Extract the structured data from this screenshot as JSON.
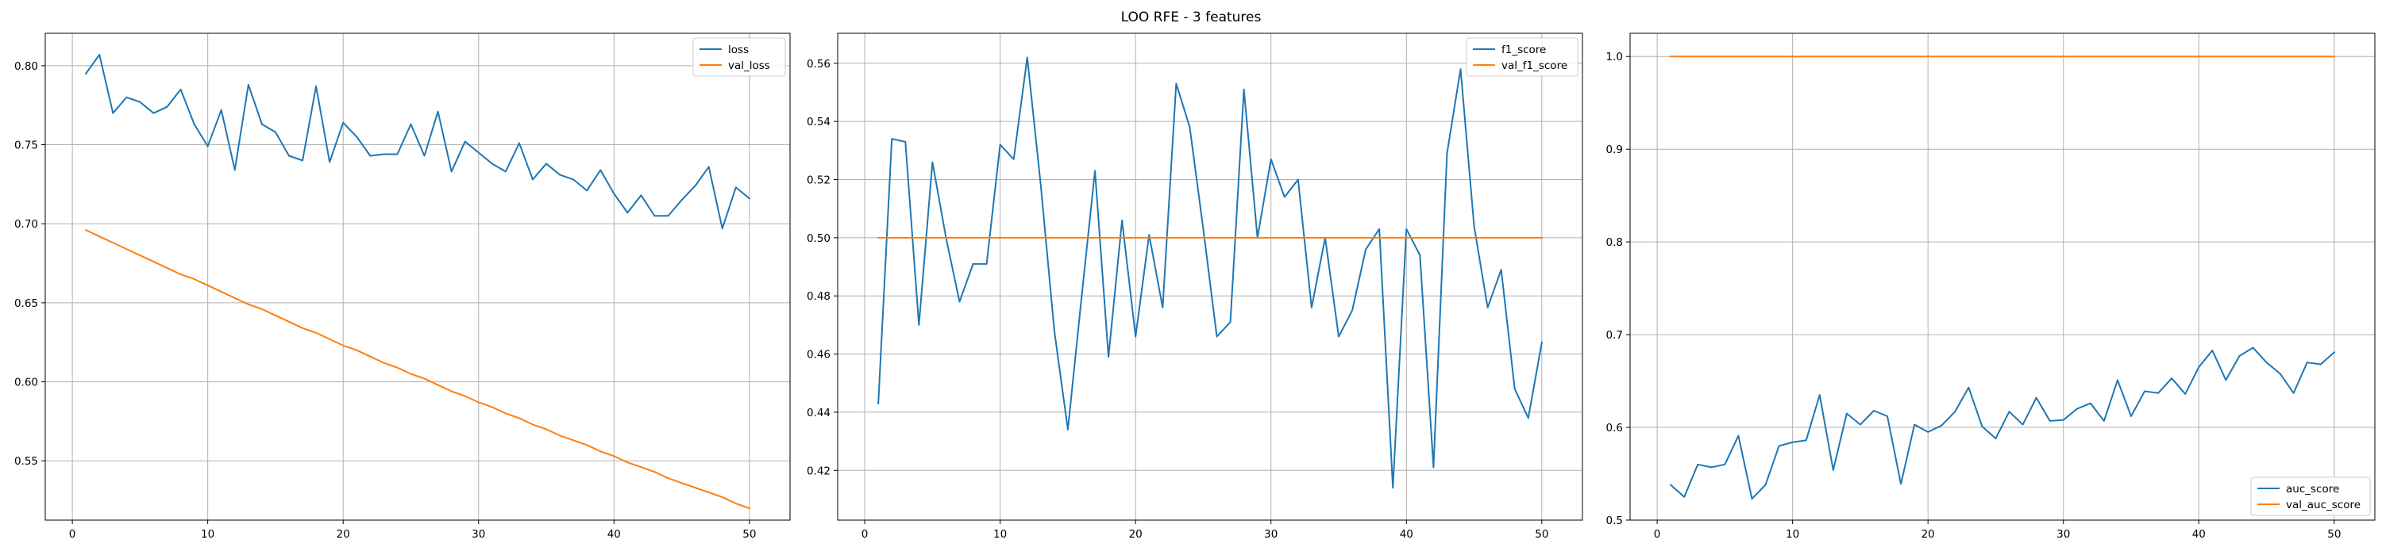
{
  "title": "LOO RFE - 3 features",
  "chart_data": [
    {
      "type": "line",
      "x": [
        1,
        2,
        3,
        4,
        5,
        6,
        7,
        8,
        9,
        10,
        11,
        12,
        13,
        14,
        15,
        16,
        17,
        18,
        19,
        20,
        21,
        22,
        23,
        24,
        25,
        26,
        27,
        28,
        29,
        30,
        31,
        32,
        33,
        34,
        35,
        36,
        37,
        38,
        39,
        40,
        41,
        42,
        43,
        44,
        45,
        46,
        47,
        48,
        49,
        50
      ],
      "xlim": [
        -2.0,
        53.0
      ],
      "xticks": [
        0,
        10,
        20,
        30,
        40,
        50
      ],
      "ylim": [
        0.5125,
        0.8205
      ],
      "yticks": [
        0.55,
        0.6,
        0.65,
        0.7,
        0.75,
        0.8
      ],
      "ytick_labels": [
        "0.55",
        "0.60",
        "0.65",
        "0.70",
        "0.75",
        "0.80"
      ],
      "grid": true,
      "legend_position": "upper-right",
      "series": [
        {
          "name": "loss",
          "color": "#1f77b4",
          "values": [
            0.795,
            0.807,
            0.77,
            0.78,
            0.777,
            0.77,
            0.774,
            0.785,
            0.763,
            0.749,
            0.772,
            0.734,
            0.788,
            0.763,
            0.758,
            0.743,
            0.74,
            0.787,
            0.739,
            0.764,
            0.755,
            0.743,
            0.744,
            0.744,
            0.763,
            0.743,
            0.771,
            0.733,
            0.752,
            0.745,
            0.738,
            0.733,
            0.751,
            0.728,
            0.738,
            0.731,
            0.728,
            0.721,
            0.734,
            0.719,
            0.707,
            0.718,
            0.705,
            0.705,
            0.715,
            0.724,
            0.736,
            0.697,
            0.723,
            0.716
          ]
        },
        {
          "name": "val_loss",
          "color": "#ff7f0e",
          "values": [
            0.696,
            0.692,
            0.688,
            0.684,
            0.68,
            0.676,
            0.672,
            0.668,
            0.665,
            0.661,
            0.657,
            0.653,
            0.649,
            0.646,
            0.642,
            0.638,
            0.634,
            0.631,
            0.627,
            0.623,
            0.62,
            0.616,
            0.612,
            0.609,
            0.605,
            0.602,
            0.598,
            0.594,
            0.591,
            0.587,
            0.584,
            0.58,
            0.577,
            0.573,
            0.57,
            0.566,
            0.563,
            0.56,
            0.556,
            0.553,
            0.549,
            0.546,
            0.543,
            0.539,
            0.536,
            0.533,
            0.53,
            0.527,
            0.523,
            0.52
          ]
        }
      ]
    },
    {
      "type": "line",
      "x": [
        1,
        2,
        3,
        4,
        5,
        6,
        7,
        8,
        9,
        10,
        11,
        12,
        13,
        14,
        15,
        16,
        17,
        18,
        19,
        20,
        21,
        22,
        23,
        24,
        25,
        26,
        27,
        28,
        29,
        30,
        31,
        32,
        33,
        34,
        35,
        36,
        37,
        38,
        39,
        40,
        41,
        42,
        43,
        44,
        45,
        46,
        47,
        48,
        49,
        50
      ],
      "xlim": [
        -2.0,
        53.0
      ],
      "xticks": [
        0,
        10,
        20,
        30,
        40,
        50
      ],
      "ylim": [
        0.4029,
        0.5703
      ],
      "yticks": [
        0.42,
        0.44,
        0.46,
        0.48,
        0.5,
        0.52,
        0.54,
        0.56
      ],
      "ytick_labels": [
        "0.42",
        "0.44",
        "0.46",
        "0.48",
        "0.50",
        "0.52",
        "0.54",
        "0.56"
      ],
      "grid": true,
      "legend_position": "upper-right",
      "series": [
        {
          "name": "f1_score",
          "color": "#1f77b4",
          "values": [
            0.443,
            0.534,
            0.533,
            0.47,
            0.526,
            0.5,
            0.478,
            0.491,
            0.491,
            0.532,
            0.527,
            0.562,
            0.518,
            0.468,
            0.434,
            0.479,
            0.523,
            0.459,
            0.506,
            0.466,
            0.501,
            0.476,
            0.553,
            0.538,
            0.503,
            0.466,
            0.471,
            0.551,
            0.5,
            0.527,
            0.514,
            0.52,
            0.476,
            0.5,
            0.466,
            0.475,
            0.496,
            0.503,
            0.414,
            0.503,
            0.494,
            0.421,
            0.529,
            0.558,
            0.504,
            0.476,
            0.489,
            0.448,
            0.438,
            0.464
          ]
        },
        {
          "name": "val_f1_score",
          "color": "#ff7f0e",
          "values": [
            0.5,
            0.5,
            0.5,
            0.5,
            0.5,
            0.5,
            0.5,
            0.5,
            0.5,
            0.5,
            0.5,
            0.5,
            0.5,
            0.5,
            0.5,
            0.5,
            0.5,
            0.5,
            0.5,
            0.5,
            0.5,
            0.5,
            0.5,
            0.5,
            0.5,
            0.5,
            0.5,
            0.5,
            0.5,
            0.5,
            0.5,
            0.5,
            0.5,
            0.5,
            0.5,
            0.5,
            0.5,
            0.5,
            0.5,
            0.5,
            0.5,
            0.5,
            0.5,
            0.5,
            0.5,
            0.5,
            0.5,
            0.5,
            0.5,
            0.5
          ]
        }
      ]
    },
    {
      "type": "line",
      "x": [
        1,
        2,
        3,
        4,
        5,
        6,
        7,
        8,
        9,
        10,
        11,
        12,
        13,
        14,
        15,
        16,
        17,
        18,
        19,
        20,
        21,
        22,
        23,
        24,
        25,
        26,
        27,
        28,
        29,
        30,
        31,
        32,
        33,
        34,
        35,
        36,
        37,
        38,
        39,
        40,
        41,
        42,
        43,
        44,
        45,
        46,
        47,
        48,
        49,
        50
      ],
      "xlim": [
        -2.0,
        53.0
      ],
      "xticks": [
        0,
        10,
        20,
        30,
        40,
        50
      ],
      "ylim": [
        0.5,
        1.025
      ],
      "yticks": [
        0.5,
        0.6,
        0.7,
        0.8,
        0.9,
        1.0
      ],
      "ytick_labels": [
        "0.5",
        "0.6",
        "0.7",
        "0.8",
        "0.9",
        "1.0"
      ],
      "grid": true,
      "legend_position": "lower-right",
      "series": [
        {
          "name": "auc_score",
          "color": "#1f77b4",
          "values": [
            0.538,
            0.525,
            0.56,
            0.557,
            0.56,
            0.591,
            0.523,
            0.538,
            0.58,
            0.584,
            0.586,
            0.635,
            0.554,
            0.615,
            0.603,
            0.618,
            0.612,
            0.539,
            0.603,
            0.595,
            0.602,
            0.617,
            0.643,
            0.601,
            0.588,
            0.617,
            0.603,
            0.632,
            0.607,
            0.608,
            0.62,
            0.626,
            0.607,
            0.651,
            0.612,
            0.639,
            0.637,
            0.653,
            0.636,
            0.665,
            0.683,
            0.651,
            0.677,
            0.686,
            0.67,
            0.658,
            0.637,
            0.67,
            0.668,
            0.681
          ]
        },
        {
          "name": "val_auc_score",
          "color": "#ff7f0e",
          "values": [
            1.0,
            1.0,
            1.0,
            1.0,
            1.0,
            1.0,
            1.0,
            1.0,
            1.0,
            1.0,
            1.0,
            1.0,
            1.0,
            1.0,
            1.0,
            1.0,
            1.0,
            1.0,
            1.0,
            1.0,
            1.0,
            1.0,
            1.0,
            1.0,
            1.0,
            1.0,
            1.0,
            1.0,
            1.0,
            1.0,
            1.0,
            1.0,
            1.0,
            1.0,
            1.0,
            1.0,
            1.0,
            1.0,
            1.0,
            1.0,
            1.0,
            1.0,
            1.0,
            1.0,
            1.0,
            1.0,
            1.0,
            1.0,
            1.0,
            1.0
          ]
        }
      ]
    }
  ]
}
